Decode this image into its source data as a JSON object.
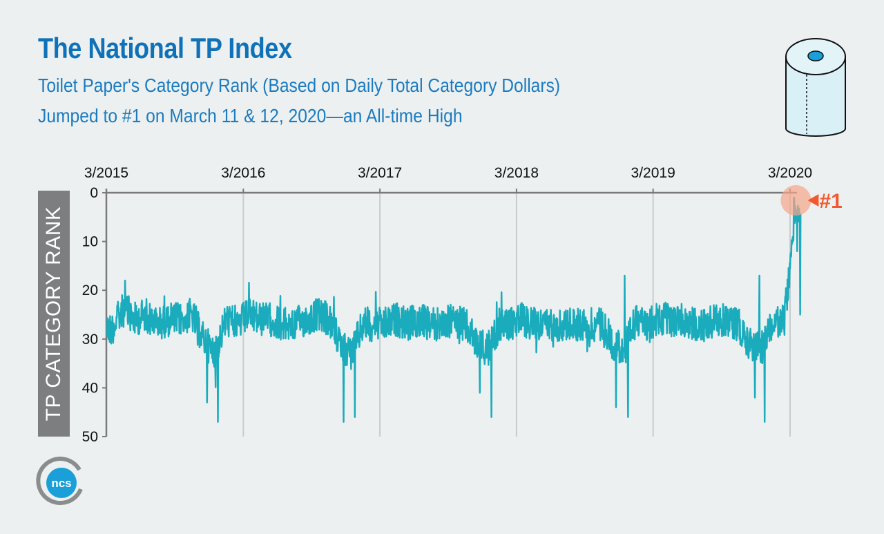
{
  "header": {
    "title": "The National TP Index",
    "subtitle_line1": "Toilet Paper's Category Rank (Based on Daily Total Category Dollars)",
    "subtitle_line2": "Jumped to #1 on March 11 & 12, 2020—an All-time High"
  },
  "logo": {
    "text": "ncs"
  },
  "colors": {
    "line": "#1aacbc",
    "title": "#0f72b8",
    "annotation": "#f05a30",
    "ylabel_box": "#7c7e80"
  },
  "chart_data": {
    "type": "line",
    "title": "The National TP Index",
    "xlabel": "",
    "ylabel": "TP CATEGORY RANK",
    "x_axis_position": "top",
    "y_inverted": true,
    "ylim": [
      0,
      50
    ],
    "yticks": [
      0,
      10,
      20,
      30,
      40,
      50
    ],
    "xtick_labels": [
      "3/2015",
      "3/2016",
      "3/2017",
      "3/2018",
      "3/2019",
      "3/2020"
    ],
    "xlim": [
      "2015-03-01",
      "2020-03-31"
    ],
    "grid": {
      "x": true,
      "y": false
    },
    "annotation": {
      "label": "#1",
      "date": "2020-03-11",
      "value": 1
    },
    "series": [
      {
        "values_monthly": [
          {
            "x": "2015-03",
            "y": 28
          },
          {
            "x": "2015-04",
            "y": 24
          },
          {
            "x": "2015-05",
            "y": 26
          },
          {
            "x": "2015-06",
            "y": 25
          },
          {
            "x": "2015-07",
            "y": 27
          },
          {
            "x": "2015-08",
            "y": 26
          },
          {
            "x": "2015-09",
            "y": 26
          },
          {
            "x": "2015-10",
            "y": 25
          },
          {
            "x": "2015-11",
            "y": 30
          },
          {
            "x": "2015-12",
            "y": 33
          },
          {
            "x": "2016-01",
            "y": 26
          },
          {
            "x": "2016-02",
            "y": 27
          },
          {
            "x": "2016-03",
            "y": 25
          },
          {
            "x": "2016-04",
            "y": 26
          },
          {
            "x": "2016-05",
            "y": 26
          },
          {
            "x": "2016-06",
            "y": 27
          },
          {
            "x": "2016-07",
            "y": 27
          },
          {
            "x": "2016-08",
            "y": 26
          },
          {
            "x": "2016-09",
            "y": 25
          },
          {
            "x": "2016-10",
            "y": 26
          },
          {
            "x": "2016-11",
            "y": 31
          },
          {
            "x": "2016-12",
            "y": 33
          },
          {
            "x": "2017-01",
            "y": 27
          },
          {
            "x": "2017-02",
            "y": 27
          },
          {
            "x": "2017-03",
            "y": 27
          },
          {
            "x": "2017-04",
            "y": 26
          },
          {
            "x": "2017-05",
            "y": 27
          },
          {
            "x": "2017-06",
            "y": 26
          },
          {
            "x": "2017-07",
            "y": 27
          },
          {
            "x": "2017-08",
            "y": 27
          },
          {
            "x": "2017-09",
            "y": 26
          },
          {
            "x": "2017-10",
            "y": 27
          },
          {
            "x": "2017-11",
            "y": 31
          },
          {
            "x": "2017-12",
            "y": 32
          },
          {
            "x": "2018-01",
            "y": 27
          },
          {
            "x": "2018-02",
            "y": 27
          },
          {
            "x": "2018-03",
            "y": 26
          },
          {
            "x": "2018-04",
            "y": 27
          },
          {
            "x": "2018-05",
            "y": 27
          },
          {
            "x": "2018-06",
            "y": 27
          },
          {
            "x": "2018-07",
            "y": 27
          },
          {
            "x": "2018-08",
            "y": 27
          },
          {
            "x": "2018-09",
            "y": 27
          },
          {
            "x": "2018-10",
            "y": 27
          },
          {
            "x": "2018-11",
            "y": 31
          },
          {
            "x": "2018-12",
            "y": 32
          },
          {
            "x": "2019-01",
            "y": 26
          },
          {
            "x": "2019-02",
            "y": 27
          },
          {
            "x": "2019-03",
            "y": 26
          },
          {
            "x": "2019-04",
            "y": 26
          },
          {
            "x": "2019-05",
            "y": 26
          },
          {
            "x": "2019-06",
            "y": 27
          },
          {
            "x": "2019-07",
            "y": 27
          },
          {
            "x": "2019-08",
            "y": 26
          },
          {
            "x": "2019-09",
            "y": 26
          },
          {
            "x": "2019-10",
            "y": 27
          },
          {
            "x": "2019-11",
            "y": 31
          },
          {
            "x": "2019-12",
            "y": 32
          },
          {
            "x": "2020-01",
            "y": 27
          },
          {
            "x": "2020-02",
            "y": 26
          },
          {
            "x": "2020-03",
            "y": 4
          }
        ],
        "notable_points": [
          {
            "x": "2015-04-20",
            "y": 18
          },
          {
            "x": "2015-11-25",
            "y": 43
          },
          {
            "x": "2015-12-24",
            "y": 47
          },
          {
            "x": "2016-11-24",
            "y": 47
          },
          {
            "x": "2016-12-24",
            "y": 46
          },
          {
            "x": "2017-11-23",
            "y": 41
          },
          {
            "x": "2017-12-24",
            "y": 46
          },
          {
            "x": "2018-11-22",
            "y": 44
          },
          {
            "x": "2018-12-24",
            "y": 46
          },
          {
            "x": "2018-12-15",
            "y": 17
          },
          {
            "x": "2019-11-28",
            "y": 42
          },
          {
            "x": "2019-12-24",
            "y": 47
          },
          {
            "x": "2019-12-10",
            "y": 17
          },
          {
            "x": "2020-03-11",
            "y": 1
          },
          {
            "x": "2020-03-12",
            "y": 1
          },
          {
            "x": "2020-03-20",
            "y": 12
          },
          {
            "x": "2020-03-28",
            "y": 25
          }
        ]
      }
    ]
  }
}
